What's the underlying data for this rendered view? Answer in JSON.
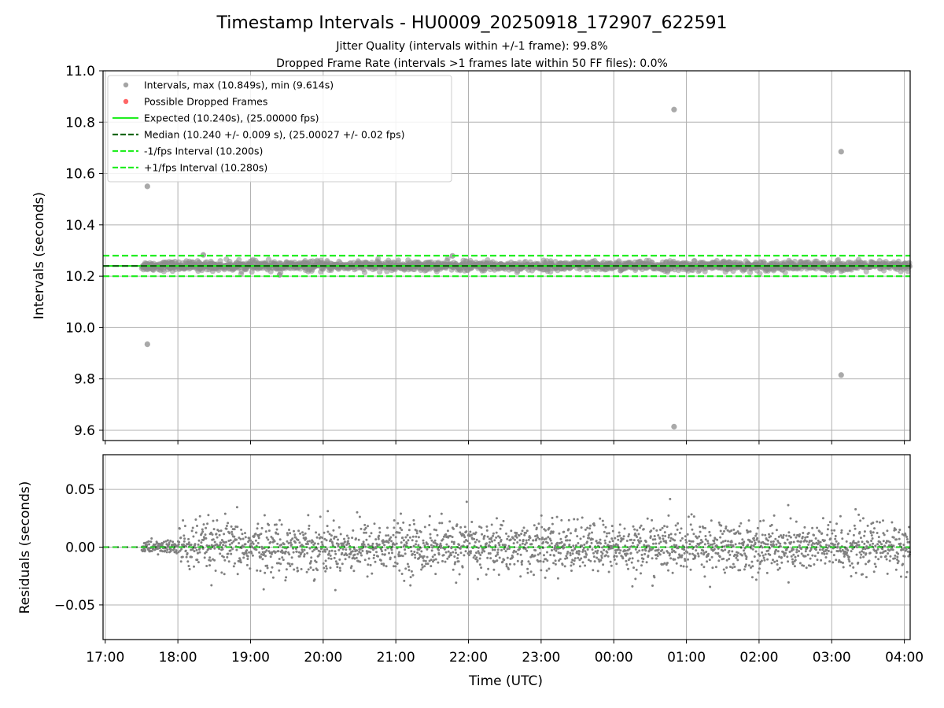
{
  "title": "Timestamp Intervals - HU0009_20250918_172907_622591",
  "subtitle1": "Jitter Quality (intervals within +/-1 frame): 99.8%",
  "subtitle2": "Dropped Frame Rate (intervals >1 frames late within 50 FF files): 0.0%",
  "colors": {
    "points": "#808080",
    "dropped": "#ff5555",
    "expected": "#22ee22",
    "median": "#116611",
    "bounds": "#22ee22",
    "grid": "#b0b0b0"
  },
  "chart_data": [
    {
      "type": "scatter",
      "name": "intervals",
      "ylabel": "Intervals (seconds)",
      "xlabel": "",
      "ylim": [
        9.56,
        11.0
      ],
      "xlim_hours": [
        16.97,
        28.08
      ],
      "grid": true,
      "legend_position": "top-left",
      "yticks": [
        9.6,
        9.8,
        10.0,
        10.2,
        10.4,
        10.6,
        10.8,
        11.0
      ],
      "ytick_labels": [
        "9.6",
        "9.8",
        "10.0",
        "10.2",
        "10.4",
        "10.6",
        "10.8",
        "11.0"
      ],
      "legend": [
        {
          "label": "Intervals, max (10.849s), min (9.614s)",
          "kind": "marker",
          "color": "#9a9a9a"
        },
        {
          "label": "Possible Dropped Frames",
          "kind": "marker",
          "color": "#ff5555"
        },
        {
          "label": "Expected (10.240s), (25.00000 fps)",
          "kind": "solid",
          "color": "#22ee22"
        },
        {
          "label": "Median (10.240 +/- 0.009 s), (25.00027 +/- 0.02 fps)",
          "kind": "dashed",
          "color": "#116611"
        },
        {
          "label": "-1/fps Interval (10.200s)",
          "kind": "dashed",
          "color": "#22ee22"
        },
        {
          "label": "+1/fps Interval (10.280s)",
          "kind": "dashed",
          "color": "#22ee22"
        }
      ],
      "expected": 10.24,
      "median": 10.24,
      "median_std": 0.009,
      "lower_bound": 10.2,
      "upper_bound": 10.28,
      "data_start_hour": 17.5,
      "data_end_hour": 28.08,
      "dense_band": {
        "center": 10.24,
        "spread": 0.009
      },
      "outliers": [
        {
          "x": 17.58,
          "y": 10.55
        },
        {
          "x": 17.58,
          "y": 9.935
        },
        {
          "x": 24.83,
          "y": 10.849
        },
        {
          "x": 24.83,
          "y": 9.614
        },
        {
          "x": 27.13,
          "y": 10.685
        },
        {
          "x": 27.13,
          "y": 9.815
        },
        {
          "x": 18.35,
          "y": 10.283
        },
        {
          "x": 21.78,
          "y": 10.279
        },
        {
          "x": 19.4,
          "y": 10.205
        }
      ]
    },
    {
      "type": "scatter",
      "name": "residuals",
      "ylabel": "Residuals (seconds)",
      "xlabel": "Time (UTC)",
      "ylim": [
        -0.08,
        0.08
      ],
      "xlim_hours": [
        16.97,
        28.08
      ],
      "grid": true,
      "yticks": [
        -0.05,
        0.0,
        0.05
      ],
      "ytick_labels": [
        "−0.05",
        "0.00",
        "0.05"
      ],
      "xticks_hours": [
        17,
        18,
        19,
        20,
        21,
        22,
        23,
        24,
        25,
        26,
        27,
        28
      ],
      "xtick_labels": [
        "17:00",
        "18:00",
        "19:00",
        "20:00",
        "21:00",
        "22:00",
        "23:00",
        "00:00",
        "01:00",
        "02:00",
        "03:00",
        "04:00"
      ],
      "residual_spread": 0.011,
      "zero_line": 0.0
    }
  ]
}
